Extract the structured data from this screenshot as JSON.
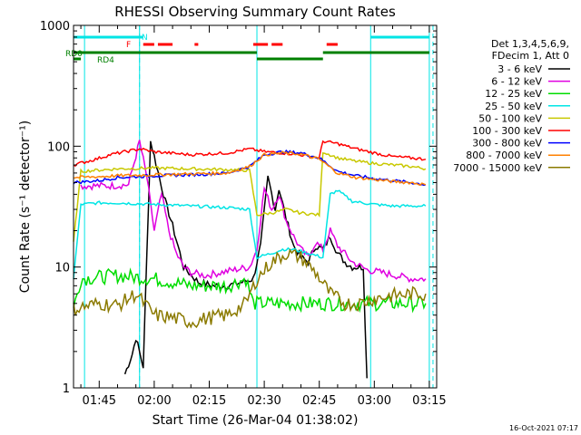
{
  "chart_data": {
    "type": "line",
    "title": "RHESSI Observing Summary Count Rates",
    "xlabel": "Start Time (26-Mar-04 01:38:02)",
    "ylabel": "Count Rate (s⁻¹ detector⁻¹)",
    "yscale": "log",
    "ylim": [
      1,
      1000
    ],
    "yticks": [
      "1",
      "10",
      "100",
      "1000"
    ],
    "xlim": [
      "01:38",
      "03:17"
    ],
    "xticks": [
      "01:45",
      "02:00",
      "02:15",
      "02:30",
      "02:45",
      "03:00",
      "03:15"
    ],
    "timestamp": "16-Oct-2021 07:17",
    "legend": {
      "title_lines": [
        "Det 1,3,4,5,6,9,",
        "FDecim 1, Att 0"
      ],
      "placement": "right"
    },
    "series": [
      {
        "name": "3 - 6 keV",
        "color": "#000000",
        "x": [
          "01:52",
          "01:54",
          "01:55",
          "01:57",
          "01:59",
          "02:03",
          "02:05",
          "02:08",
          "02:12",
          "02:16",
          "02:20",
          "02:24",
          "02:27",
          "02:29",
          "02:31",
          "02:33",
          "02:34",
          "02:36",
          "02:38",
          "02:40",
          "02:42",
          "02:44",
          "02:46",
          "02:48",
          "02:50",
          "02:52",
          "02:54",
          "02:57",
          "02:58"
        ],
        "y": [
          1.3,
          1.9,
          2.6,
          1.5,
          110,
          35,
          22,
          10,
          7.5,
          7,
          7,
          7.5,
          8,
          15,
          55,
          30,
          45,
          25,
          15,
          12,
          11,
          15,
          14,
          18,
          13,
          11,
          10,
          10,
          1.2
        ]
      },
      {
        "name": "6 - 12 keV",
        "color": "#e000e0",
        "x": [
          "01:40",
          "01:48",
          "01:53",
          "01:56",
          "01:58",
          "02:00",
          "02:02",
          "02:04",
          "02:06",
          "02:08",
          "02:10",
          "02:14",
          "02:18",
          "02:22",
          "02:26",
          "02:28",
          "02:30",
          "02:32",
          "02:34",
          "02:36",
          "02:38",
          "02:40",
          "02:42",
          "02:44",
          "02:46",
          "02:48",
          "02:50",
          "02:54",
          "02:58",
          "03:02",
          "03:06",
          "03:10",
          "03:14"
        ],
        "y": [
          47,
          47,
          48,
          110,
          55,
          20,
          40,
          20,
          13,
          10,
          9,
          8.5,
          9,
          9.5,
          10,
          14,
          45,
          30,
          40,
          24,
          18,
          14,
          12,
          16,
          14,
          20,
          15,
          11,
          9.5,
          9,
          8.5,
          8,
          8
        ]
      },
      {
        "name": "12 - 25 keV",
        "color": "#00dd00",
        "x": [
          "01:38",
          "01:40",
          "01:50",
          "02:00",
          "02:10",
          "02:20",
          "02:25",
          "02:27",
          "02:30",
          "02:40",
          "02:50",
          "03:00",
          "03:05",
          "03:10",
          "03:14"
        ],
        "y": [
          4.5,
          8,
          8.5,
          8,
          7,
          7,
          8,
          5,
          5,
          5,
          5,
          5,
          5,
          5,
          5
        ]
      },
      {
        "name": "25 - 50 keV",
        "color": "#00e5e5",
        "x": [
          "01:38",
          "01:40",
          "01:45",
          "01:50",
          "02:00",
          "02:10",
          "02:20",
          "02:26",
          "02:28",
          "02:32",
          "02:35",
          "02:38",
          "02:42",
          "02:46",
          "02:48",
          "02:50",
          "02:54",
          "03:00",
          "03:05",
          "03:10",
          "03:14"
        ],
        "y": [
          8,
          33,
          34,
          34,
          33,
          32,
          31,
          30,
          12,
          13,
          14,
          14,
          13,
          12,
          40,
          43,
          35,
          33,
          32,
          32,
          32
        ]
      },
      {
        "name": "50 - 100 keV",
        "color": "#c8c800",
        "x": [
          "01:38",
          "01:40",
          "01:50",
          "02:00",
          "02:10",
          "02:20",
          "02:26",
          "02:28",
          "02:32",
          "02:36",
          "02:40",
          "02:45",
          "02:46",
          "02:50",
          "02:55",
          "03:00",
          "03:05",
          "03:10",
          "03:14"
        ],
        "y": [
          16,
          62,
          65,
          66,
          65,
          64,
          63,
          27,
          28,
          30,
          28,
          27,
          90,
          80,
          75,
          72,
          70,
          68,
          65
        ]
      },
      {
        "name": "100 - 300 keV",
        "color": "#ff0000",
        "x": [
          "01:38",
          "01:44",
          "01:48",
          "01:52",
          "01:56",
          "02:00",
          "02:10",
          "02:20",
          "02:26",
          "02:30",
          "02:35",
          "02:40",
          "02:45",
          "02:46",
          "02:50",
          "02:55",
          "03:00",
          "03:05",
          "03:10",
          "03:14"
        ],
        "y": [
          70,
          78,
          85,
          90,
          95,
          90,
          85,
          88,
          95,
          90,
          88,
          85,
          80,
          110,
          105,
          95,
          88,
          82,
          80,
          78
        ]
      },
      {
        "name": "300 - 800 keV",
        "color": "#0000ff",
        "x": [
          "01:38",
          "01:45",
          "01:50",
          "02:00",
          "02:10",
          "02:20",
          "02:26",
          "02:30",
          "02:35",
          "02:40",
          "02:45",
          "02:50",
          "02:55",
          "03:00",
          "03:05",
          "03:10",
          "03:14"
        ],
        "y": [
          50,
          52,
          55,
          57,
          58,
          60,
          68,
          85,
          90,
          88,
          80,
          62,
          57,
          54,
          52,
          50,
          48
        ]
      },
      {
        "name": "800 - 7000 keV",
        "color": "#ff8000",
        "x": [
          "01:38",
          "01:45",
          "01:50",
          "02:00",
          "02:10",
          "02:20",
          "02:26",
          "02:30",
          "02:35",
          "02:40",
          "02:45",
          "02:50",
          "02:55",
          "03:00",
          "03:05",
          "03:10",
          "03:14"
        ],
        "y": [
          55,
          56,
          57,
          58,
          59,
          60,
          68,
          85,
          88,
          86,
          78,
          60,
          55,
          53,
          51,
          50,
          48
        ]
      },
      {
        "name": "7000 - 15000 keV",
        "color": "#8b7a00",
        "x": [
          "01:38",
          "01:45",
          "01:50",
          "01:55",
          "02:00",
          "02:05",
          "02:10",
          "02:15",
          "02:20",
          "02:25",
          "02:28",
          "02:32",
          "02:36",
          "02:40",
          "02:44",
          "02:48",
          "02:52",
          "02:56",
          "03:00",
          "03:05",
          "03:10",
          "03:14"
        ],
        "y": [
          4.5,
          5,
          4.8,
          6,
          4,
          3.8,
          3.5,
          3.8,
          4,
          5,
          8,
          11,
          13,
          12,
          9,
          6,
          5,
          5,
          5.5,
          5.8,
          6,
          6
        ]
      }
    ],
    "flag_bars": [
      {
        "label": "N",
        "color": "#00e5e5",
        "segments": [
          [
            "01:38",
            "01:57"
          ],
          [
            "02:59",
            "03:15"
          ]
        ]
      },
      {
        "label": "F",
        "color": "#ff0000",
        "segments": [
          [
            "01:57",
            "02:00"
          ],
          [
            "02:01",
            "02:05"
          ],
          [
            "02:11",
            "02:12"
          ],
          [
            "02:27",
            "02:31"
          ],
          [
            "02:32",
            "02:35"
          ],
          [
            "02:47",
            "02:50"
          ]
        ]
      },
      {
        "label": "RD0",
        "color": "#008000",
        "segments": [
          [
            "01:38",
            "02:28"
          ],
          [
            "02:46",
            "03:15"
          ]
        ]
      },
      {
        "label": "RD4",
        "color": "#008000",
        "segments": [
          [
            "01:38",
            "01:40"
          ],
          [
            "02:28",
            "02:46"
          ]
        ]
      }
    ],
    "vlines_solid": [
      "01:41",
      "01:56",
      "02:28",
      "02:59",
      "03:15"
    ],
    "vlines_dashed": [
      "01:56",
      "03:16"
    ]
  }
}
